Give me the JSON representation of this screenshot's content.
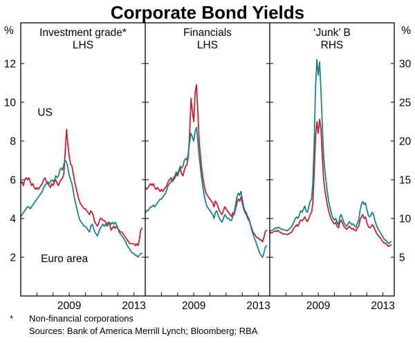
{
  "title": "Corporate Bond Yields",
  "axes": {
    "left_unit": "%",
    "right_unit": "%",
    "left_ticks": [
      2,
      4,
      6,
      8,
      10,
      12
    ],
    "right_ticks": [
      5,
      10,
      15,
      20,
      25,
      30
    ],
    "left_value_range": [
      0,
      14.1
    ],
    "right_to_left_ratio": 2.5
  },
  "footnote": {
    "marker": "*",
    "text": "Non-financial corporations"
  },
  "sources": "Sources: Bank of America Merrill Lynch; Bloomberg; RBA",
  "colors": {
    "us": "#c8202c",
    "euro": "#17828e",
    "axis": "#000000"
  },
  "chart_data": {
    "type": "line",
    "x_start": 2006.0,
    "x_step": 0.0833333,
    "x_range": [
      2006.0,
      2013.7
    ],
    "x_year_ticks": [
      2007,
      2008,
      2009,
      2010,
      2011,
      2012,
      2013
    ],
    "x_tick_labels": [
      {
        "value": 2009,
        "label": "2009"
      },
      {
        "value": 2013,
        "label": "2013"
      }
    ],
    "panels": [
      {
        "title": "Investment grade*",
        "axis_label": "LHS",
        "scale": "left",
        "labels": [
          {
            "text": "US",
            "x": 2007.5,
            "y": 9.3,
            "color_key": "us"
          },
          {
            "text": "Euro area",
            "x": 2008.7,
            "y": 1.75,
            "color_key": "euro"
          }
        ],
        "series": [
          {
            "name": "US",
            "color_key": "us",
            "values": [
              5.8,
              5.9,
              5.7,
              6.0,
              6.1,
              6.0,
              6.1,
              5.9,
              5.7,
              5.8,
              5.6,
              5.5,
              5.6,
              5.5,
              5.6,
              5.7,
              5.8,
              6.0,
              6.1,
              5.9,
              5.8,
              5.7,
              5.6,
              5.8,
              5.7,
              5.9,
              6.0,
              5.8,
              5.7,
              5.9,
              6.0,
              6.1,
              6.3,
              7.5,
              8.6,
              7.8,
              7.2,
              6.8,
              6.7,
              6.3,
              5.9,
              5.6,
              5.3,
              5.0,
              4.8,
              4.7,
              4.6,
              4.5,
              4.5,
              4.4,
              4.3,
              4.2,
              4.4,
              4.3,
              4.1,
              3.8,
              3.7,
              3.6,
              3.8,
              4.0,
              4.0,
              3.9,
              3.9,
              3.8,
              3.7,
              3.8,
              3.7,
              3.4,
              3.5,
              3.6,
              3.5,
              3.6,
              3.5,
              3.4,
              3.3,
              3.3,
              3.2,
              3.1,
              3.0,
              2.9,
              2.8,
              2.7,
              2.7,
              2.7,
              2.7,
              2.6,
              2.7,
              2.6,
              2.9,
              3.4,
              3.5
            ]
          },
          {
            "name": "Euro area",
            "color_key": "euro",
            "values": [
              4.1,
              4.2,
              4.3,
              4.4,
              4.5,
              4.6,
              4.6,
              4.5,
              4.6,
              4.7,
              4.8,
              4.9,
              5.0,
              5.1,
              5.2,
              5.3,
              5.4,
              5.6,
              5.7,
              5.8,
              5.9,
              5.8,
              5.9,
              6.0,
              5.9,
              6.0,
              6.2,
              6.1,
              6.2,
              6.5,
              6.6,
              6.5,
              6.8,
              7.0,
              6.9,
              6.6,
              6.2,
              6.0,
              5.8,
              5.4,
              5.0,
              4.7,
              4.4,
              4.1,
              3.9,
              3.8,
              3.7,
              3.6,
              3.6,
              3.5,
              3.4,
              3.3,
              3.6,
              3.7,
              3.5,
              3.3,
              3.2,
              3.1,
              3.3,
              3.5,
              3.6,
              3.7,
              3.6,
              3.7,
              3.6,
              3.7,
              3.8,
              3.7,
              3.8,
              3.7,
              3.8,
              3.7,
              3.5,
              3.3,
              3.2,
              3.1,
              3.0,
              2.9,
              2.8,
              2.6,
              2.5,
              2.4,
              2.3,
              2.2,
              2.2,
              2.1,
              2.1,
              2.0,
              2.1,
              2.2,
              2.2
            ]
          }
        ]
      },
      {
        "title": "Financials",
        "axis_label": "LHS",
        "scale": "left",
        "labels": [],
        "series": [
          {
            "name": "US",
            "color_key": "us",
            "values": [
              5.6,
              5.5,
              5.6,
              5.7,
              5.8,
              5.7,
              5.8,
              5.6,
              5.5,
              5.6,
              5.5,
              5.4,
              5.5,
              5.4,
              5.5,
              5.6,
              5.7,
              5.9,
              6.0,
              6.1,
              5.9,
              6.0,
              6.1,
              6.3,
              6.2,
              6.4,
              6.6,
              6.3,
              6.2,
              6.5,
              6.7,
              6.8,
              7.2,
              8.5,
              10.2,
              9.5,
              9.0,
              10.5,
              10.9,
              9.5,
              8.0,
              7.2,
              6.5,
              6.0,
              5.6,
              5.3,
              5.2,
              5.1,
              5.0,
              4.9,
              4.8,
              4.6,
              4.9,
              4.8,
              4.6,
              4.4,
              4.3,
              4.2,
              4.4,
              4.6,
              4.5,
              4.4,
              4.3,
              4.2,
              4.1,
              4.3,
              4.2,
              4.5,
              4.8,
              5.0,
              4.9,
              5.1,
              4.8,
              4.5,
              4.3,
              4.2,
              4.0,
              3.9,
              3.7,
              3.5,
              3.3,
              3.2,
              3.1,
              3.0,
              3.0,
              2.9,
              2.9,
              2.8,
              3.0,
              3.3,
              3.4
            ]
          },
          {
            "name": "Euro area",
            "color_key": "euro",
            "values": [
              4.3,
              4.4,
              4.4,
              4.5,
              4.6,
              4.6,
              4.7,
              4.6,
              4.7,
              4.8,
              4.9,
              5.0,
              5.0,
              5.1,
              5.2,
              5.3,
              5.5,
              5.7,
              5.8,
              5.9,
              6.0,
              6.1,
              6.2,
              6.4,
              6.3,
              6.5,
              6.7,
              6.6,
              6.7,
              7.0,
              7.1,
              7.0,
              7.4,
              8.0,
              8.4,
              8.2,
              8.0,
              8.5,
              8.7,
              8.0,
              7.2,
              6.6,
              6.0,
              5.5,
              5.1,
              4.8,
              4.6,
              4.5,
              4.4,
              4.3,
              4.2,
              4.0,
              4.3,
              4.4,
              4.2,
              4.0,
              3.9,
              3.8,
              4.0,
              4.2,
              4.1,
              4.0,
              4.0,
              3.9,
              3.9,
              4.1,
              4.3,
              4.7,
              5.1,
              5.3,
              5.2,
              5.4,
              5.0,
              4.6,
              4.4,
              4.3,
              4.1,
              4.0,
              3.7,
              3.4,
              3.2,
              3.0,
              2.8,
              2.6,
              2.4,
              2.2,
              2.1,
              2.0,
              2.2,
              2.5,
              2.6
            ]
          }
        ]
      },
      {
        "title": "‘Junk’ B",
        "axis_label": "RHS",
        "scale": "right",
        "labels": [],
        "series": [
          {
            "name": "US",
            "color_key": "us",
            "values": [
              8.2,
              8.1,
              8.2,
              8.3,
              8.4,
              8.3,
              8.5,
              8.3,
              8.2,
              8.1,
              8.0,
              8.0,
              8.0,
              7.9,
              8.0,
              8.1,
              8.2,
              8.5,
              8.8,
              9.0,
              9.2,
              9.0,
              9.5,
              9.8,
              9.7,
              9.9,
              10.2,
              9.8,
              9.6,
              10.0,
              10.5,
              10.8,
              12.0,
              16.0,
              20.5,
              22.5,
              21.0,
              22.8,
              21.5,
              18.0,
              15.0,
              13.5,
              12.5,
              11.5,
              10.8,
              10.2,
              9.8,
              9.5,
              9.3,
              9.5,
              9.0,
              8.8,
              9.5,
              9.8,
              9.4,
              9.0,
              8.8,
              8.6,
              8.8,
              9.0,
              8.8,
              8.6,
              8.7,
              8.5,
              8.4,
              8.8,
              9.0,
              9.8,
              10.2,
              10.5,
              10.0,
              10.2,
              9.5,
              9.0,
              8.8,
              8.9,
              9.2,
              9.0,
              8.6,
              8.2,
              7.9,
              7.7,
              7.5,
              7.2,
              7.0,
              6.8,
              6.8,
              6.6,
              6.4,
              6.5,
              6.6
            ]
          },
          {
            "name": "Euro area",
            "color_key": "euro",
            "values": [
              8.5,
              8.4,
              8.5,
              8.6,
              8.8,
              8.7,
              8.9,
              8.8,
              8.7,
              8.6,
              8.6,
              8.5,
              8.5,
              8.4,
              8.6,
              8.7,
              8.9,
              9.2,
              9.6,
              10.0,
              10.2,
              10.0,
              10.5,
              11.0,
              10.8,
              11.2,
              11.6,
              11.0,
              10.8,
              11.5,
              12.2,
              12.5,
              14.5,
              20.0,
              27.0,
              30.5,
              28.5,
              30.2,
              26.5,
              22.0,
              18.0,
              16.0,
              14.5,
              13.0,
              12.0,
              11.2,
              10.5,
              10.0,
              9.8,
              10.0,
              9.5,
              9.2,
              10.2,
              10.5,
              10.0,
              9.5,
              9.2,
              9.0,
              9.3,
              9.6,
              9.4,
              9.2,
              9.3,
              9.0,
              8.9,
              9.4,
              9.8,
              11.0,
              11.8,
              12.2,
              11.8,
              12.0,
              11.2,
              10.5,
              10.2,
              10.4,
              10.8,
              10.5,
              9.8,
              9.2,
              8.8,
              8.5,
              8.2,
              7.9,
              7.6,
              7.3,
              7.2,
              7.0,
              6.8,
              6.9,
              7.0
            ]
          }
        ]
      }
    ]
  }
}
